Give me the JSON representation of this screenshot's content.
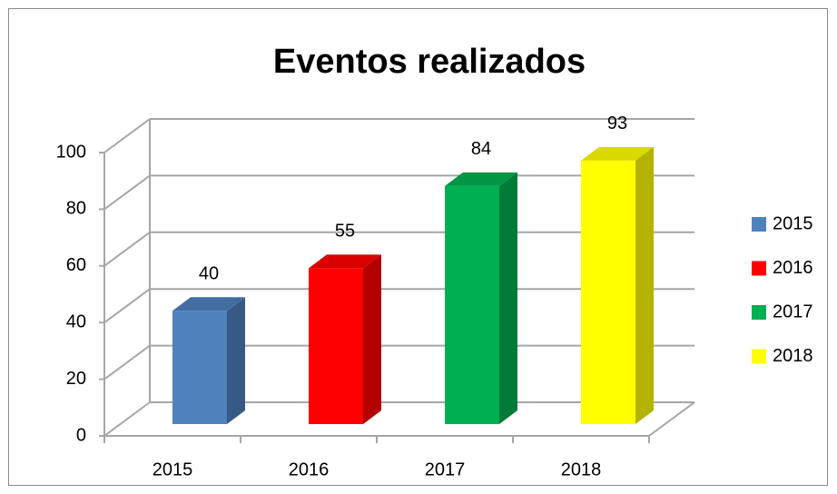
{
  "chart_data": {
    "type": "bar3d",
    "title": "Eventos realizados",
    "categories": [
      "2015",
      "2016",
      "2017",
      "2018"
    ],
    "values": [
      40,
      55,
      84,
      93
    ],
    "colors": [
      "#4f81bd",
      "#ff0000",
      "#00b050",
      "#ffff00"
    ],
    "ylim": [
      0,
      100
    ],
    "yticks": [
      0,
      20,
      40,
      60,
      80,
      100
    ],
    "grid": true,
    "legend": "right"
  }
}
